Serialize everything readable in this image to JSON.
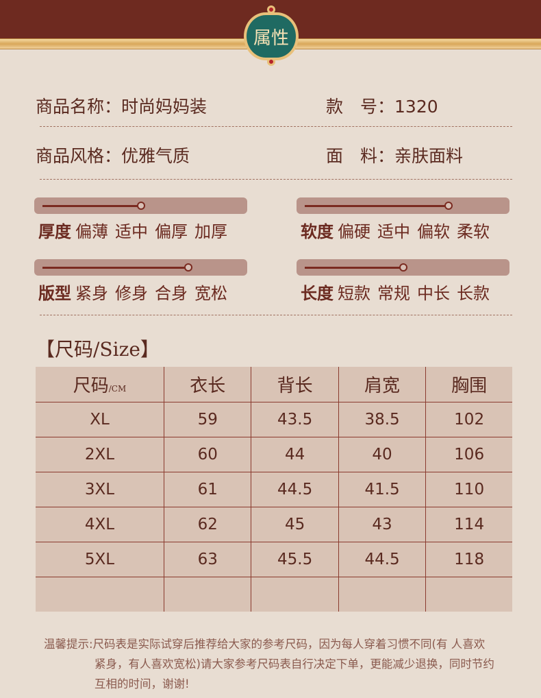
{
  "header": {
    "badge_title": "属性"
  },
  "attributes": [
    {
      "label": "商品名称：",
      "value": "时尚妈妈装"
    },
    {
      "label": "款　号：",
      "value": "1320"
    },
    {
      "label": "商品风格：",
      "value": "优雅气质"
    },
    {
      "label": "面　料：",
      "value": "亲肤面料"
    }
  ],
  "scales": [
    {
      "name": "厚度",
      "options": [
        "偏薄",
        "适中",
        "偏厚",
        "加厚"
      ],
      "level": 0.5
    },
    {
      "name": "软度",
      "options": [
        "偏硬",
        "适中",
        "偏软",
        "柔软"
      ],
      "level": 0.72
    },
    {
      "name": "版型",
      "options": [
        "紧身",
        "修身",
        "合身",
        "宽松"
      ],
      "level": 0.73
    },
    {
      "name": "长度",
      "options": [
        "短款",
        "常规",
        "中长",
        "长款"
      ],
      "level": 0.5
    }
  ],
  "size_chart": {
    "title": "【尺码/Size】",
    "headers": [
      "尺码",
      "衣长",
      "背长",
      "肩宽",
      "胸围"
    ],
    "unit": "/CM",
    "rows": [
      [
        "XL",
        "59",
        "43.5",
        "38.5",
        "102"
      ],
      [
        "2XL",
        "60",
        "44",
        "40",
        "106"
      ],
      [
        "3XL",
        "61",
        "44.5",
        "41.5",
        "110"
      ],
      [
        "4XL",
        "62",
        "45",
        "43",
        "114"
      ],
      [
        "5XL",
        "63",
        "45.5",
        "44.5",
        "118"
      ],
      [
        "",
        "",
        "",
        "",
        ""
      ]
    ]
  },
  "note": {
    "line1": "温馨提示:尺码表是实际试穿后推荐给大家的参考尺码，因为每人穿着习惯不同(有 人喜欢",
    "line2": "紧身，有人喜欢宽松)请大家参考尺码表自行决定下单，更能减少退换，同时节约",
    "line3": "互相的时间，谢谢!"
  },
  "colors": {
    "banner": "#6e2a20",
    "badge": "#1f6a62",
    "background": "#e8ddd2",
    "track": "#b9948a"
  }
}
